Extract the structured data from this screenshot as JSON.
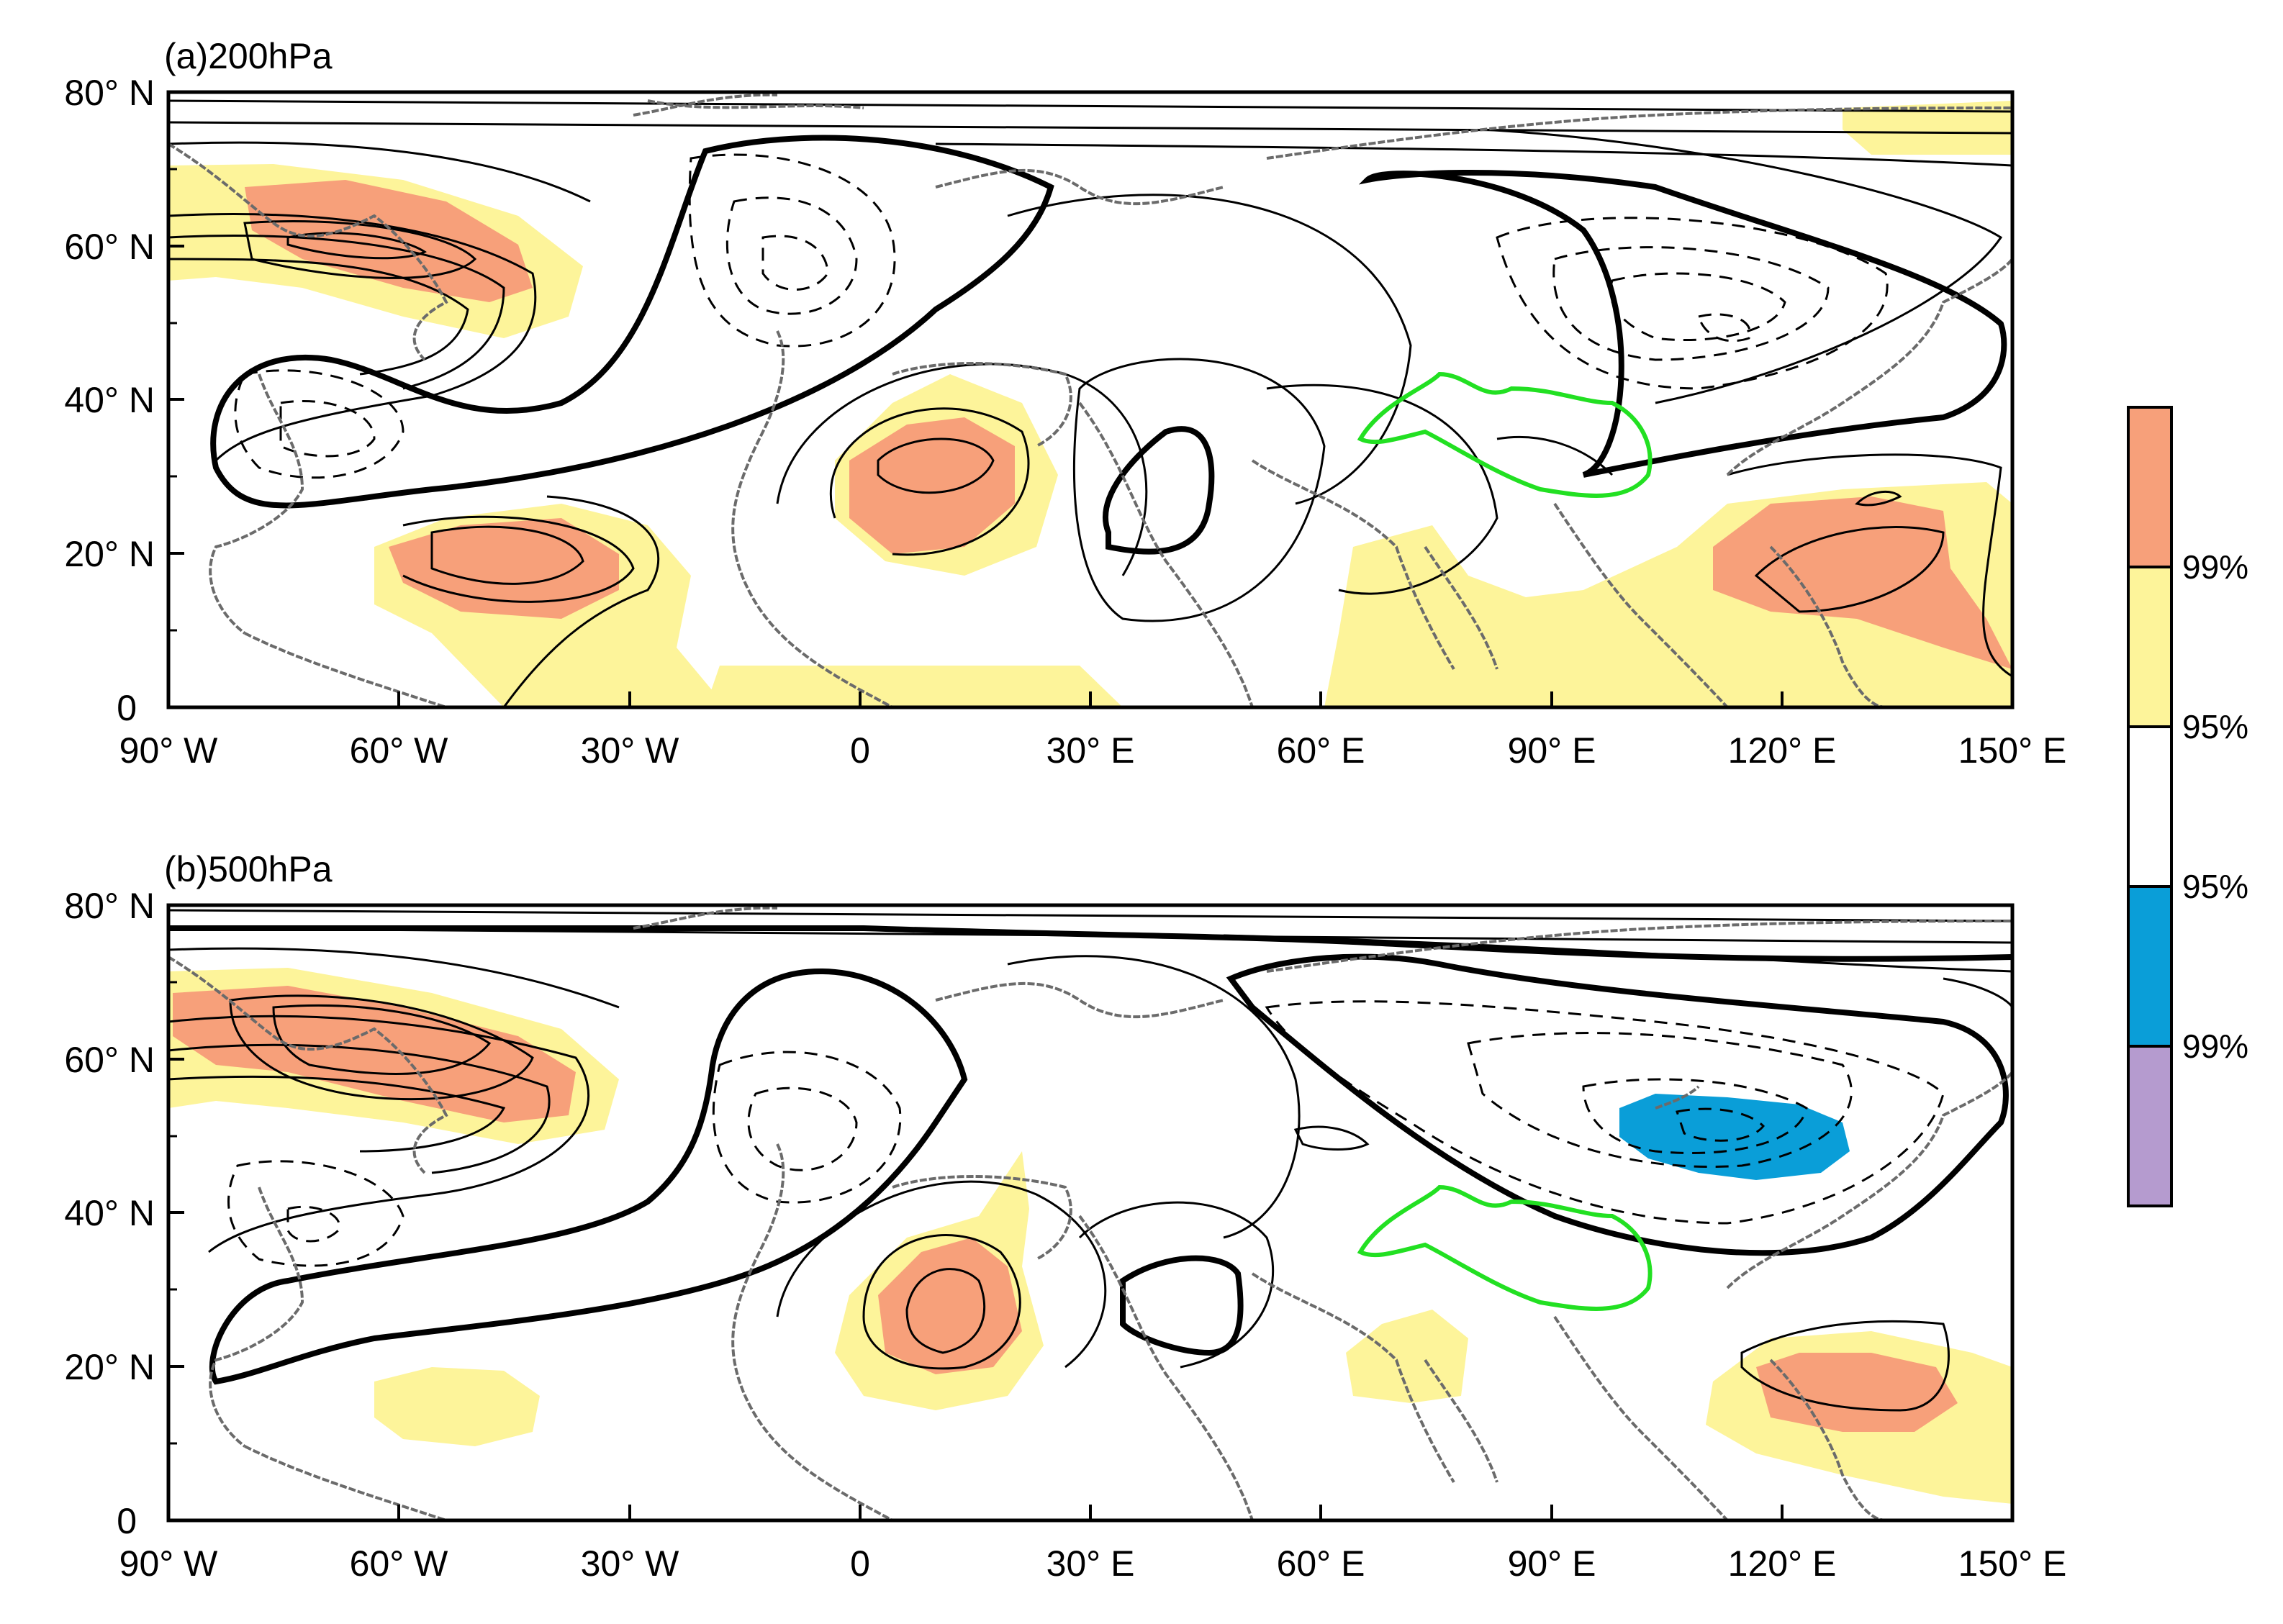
{
  "panels": [
    {
      "label": "(a)200hPa"
    },
    {
      "label": "(b)500hPa"
    }
  ],
  "y_axis": {
    "ticks": [
      "80° N",
      "60° N",
      "40° N",
      "20° N",
      "0"
    ]
  },
  "x_axis": {
    "ticks": [
      "90° W",
      "60° W",
      "30° W",
      "0",
      "30° E",
      "60° E",
      "90° E",
      "120° E",
      "150° E"
    ]
  },
  "colorbar": {
    "labels": [
      "99%",
      "95%",
      "95%",
      "99%"
    ],
    "colors": [
      "#f7a07a",
      "#fdf49a",
      "#ffffff",
      "#0a9ed8",
      "#b59bcf"
    ]
  },
  "map_extent": {
    "lon": [
      -90,
      150
    ],
    "lat": [
      0,
      80
    ]
  },
  "colors": {
    "pos_99": "#f7a07a",
    "pos_95": "#fdf49a",
    "neg_95": "#0a9ed8",
    "neg_99": "#b59bcf",
    "coastline": "#6b6b6b",
    "plateau_outline": "#22e022"
  }
}
